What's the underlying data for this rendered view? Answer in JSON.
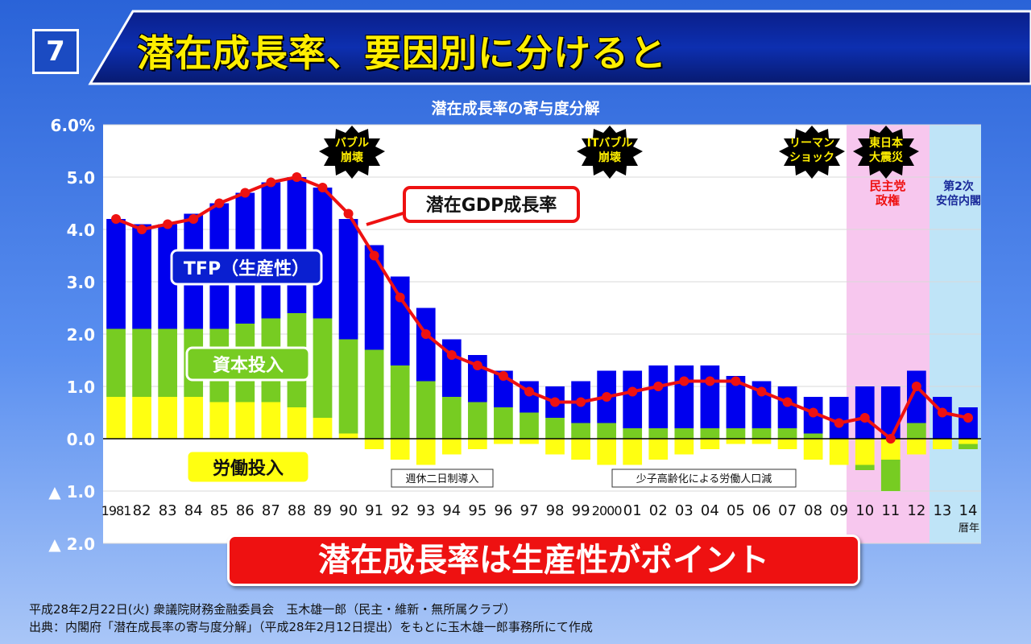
{
  "slide": {
    "number": "7",
    "title": "潜在成長率、要因別に分けると",
    "conclusion": "潜在成長率は生産性がポイント",
    "footer_line1": "平成28年2月22日(火) 衆議院財務金融委員会　玉木雄一郎（民主・維新・無所属クラブ）",
    "footer_line2": "出典：内閣府「潜在成長率の寄与度分解」（平成28年2月12日提出）をもとに玉木雄一郎事務所にて作成"
  },
  "colors": {
    "tfp": "#0000ee",
    "capital": "#77cc22",
    "labor": "#ffff11",
    "gdp_line": "#ee1111",
    "dpj_period": "#f7c7ee",
    "abe_period": "#bfe4f7"
  },
  "chart_data": {
    "type": "bar",
    "title": "潜在成長率の寄与度分解",
    "stacked": true,
    "categories": [
      "1981",
      "82",
      "83",
      "84",
      "85",
      "86",
      "87",
      "88",
      "89",
      "90",
      "91",
      "92",
      "93",
      "94",
      "95",
      "96",
      "97",
      "98",
      "99",
      "2000",
      "01",
      "02",
      "03",
      "04",
      "05",
      "06",
      "07",
      "08",
      "09",
      "10",
      "11",
      "12",
      "13",
      "14"
    ],
    "x_unit_label": "暦年",
    "y_ticks": [
      "6.0%",
      "5.0",
      "4.0",
      "3.0",
      "2.0",
      "1.0",
      "0.0",
      "▲ 1.0",
      "▲ 2.0"
    ],
    "ylim": [
      -2,
      6
    ],
    "series": [
      {
        "name": "労働投入",
        "type": "bar",
        "values": [
          0.8,
          0.8,
          0.8,
          0.8,
          0.7,
          0.7,
          0.7,
          0.6,
          0.4,
          0.1,
          -0.2,
          -0.4,
          -0.5,
          -0.3,
          -0.2,
          -0.1,
          -0.1,
          -0.3,
          -0.4,
          -0.5,
          -0.5,
          -0.4,
          -0.3,
          -0.2,
          -0.1,
          -0.1,
          -0.2,
          -0.4,
          -0.5,
          -0.5,
          -0.4,
          -0.3,
          -0.2,
          -0.1
        ]
      },
      {
        "name": "資本投入",
        "type": "bar",
        "values": [
          1.3,
          1.3,
          1.3,
          1.3,
          1.4,
          1.5,
          1.6,
          1.8,
          1.9,
          1.8,
          1.7,
          1.4,
          1.1,
          0.8,
          0.7,
          0.6,
          0.5,
          0.4,
          0.3,
          0.3,
          0.2,
          0.2,
          0.2,
          0.2,
          0.2,
          0.2,
          0.2,
          0.1,
          0.0,
          -0.1,
          -0.6,
          0.3,
          0.0,
          -0.1
        ]
      },
      {
        "name": "TFP（生産性）",
        "type": "bar",
        "values": [
          2.1,
          2.0,
          2.0,
          2.2,
          2.4,
          2.5,
          2.6,
          2.6,
          2.5,
          2.3,
          2.0,
          1.7,
          1.4,
          1.1,
          0.9,
          0.7,
          0.6,
          0.6,
          0.8,
          1.0,
          1.1,
          1.2,
          1.2,
          1.2,
          1.0,
          0.9,
          0.8,
          0.7,
          0.8,
          1.0,
          1.0,
          1.0,
          0.8,
          0.6
        ]
      },
      {
        "name": "潜在GDP成長率",
        "type": "line",
        "values": [
          4.2,
          4.0,
          4.1,
          4.2,
          4.5,
          4.7,
          4.9,
          5.0,
          4.8,
          4.3,
          3.5,
          2.7,
          2.0,
          1.6,
          1.4,
          1.2,
          0.9,
          0.7,
          0.7,
          0.8,
          0.9,
          1.0,
          1.1,
          1.1,
          1.1,
          0.9,
          0.7,
          0.5,
          0.3,
          0.4,
          0.0,
          1.0,
          0.5,
          0.4
        ]
      }
    ],
    "callouts": {
      "bubble_burst": "バブル崩壊",
      "it_bubble_burst": "ITバブル崩壊",
      "lehman_shock": "リーマンショック",
      "great_east_japan_earthquake": "東日本大震災",
      "dpj_government": "民主党政権",
      "abe_second_cabinet": "第2次安倍内閣",
      "five_day_week": "週休二日制導入",
      "aging_labor_decline": "少子高齢化による労働人口減"
    }
  }
}
